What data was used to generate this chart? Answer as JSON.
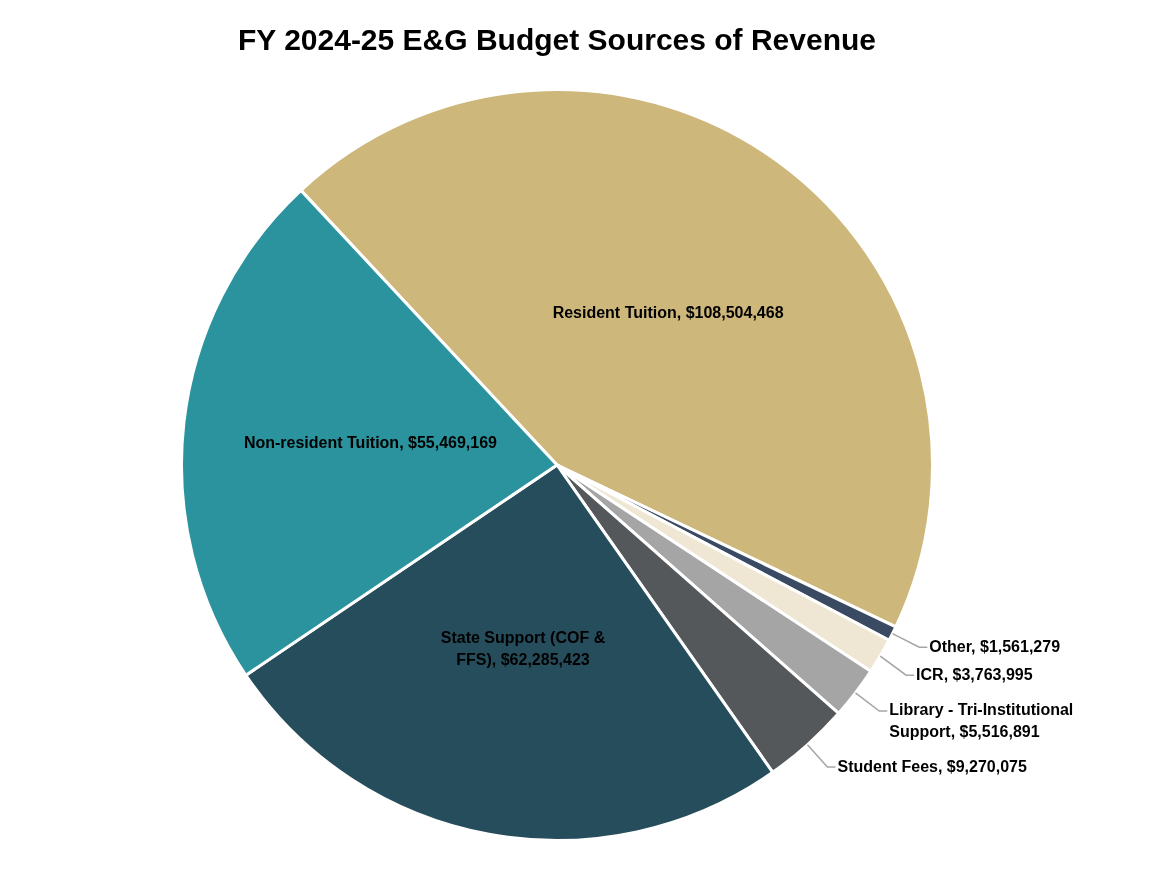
{
  "chart_data": {
    "type": "pie",
    "title": "FY 2024-25 E&G Budget Sources of Revenue",
    "categories": [
      "Resident Tuition",
      "Other",
      "ICR",
      "Library - Tri-Institutional Support",
      "Student Fees",
      "State Support (COF & FFS)",
      "Non-resident Tuition"
    ],
    "values": [
      108504468,
      1561279,
      3763995,
      5516891,
      9270075,
      62285423,
      55469169
    ],
    "value_labels": [
      "$108,504,468",
      "$1,561,279",
      "$3,763,995",
      "$5,516,891",
      "$9,270,075",
      "$62,285,423",
      "$55,469,169"
    ],
    "colors": [
      "#cdb77b",
      "#3b4a63",
      "#efe7d4",
      "#a5a5a5",
      "#55585b",
      "#264d5b",
      "#2a939d"
    ],
    "legend": false
  }
}
